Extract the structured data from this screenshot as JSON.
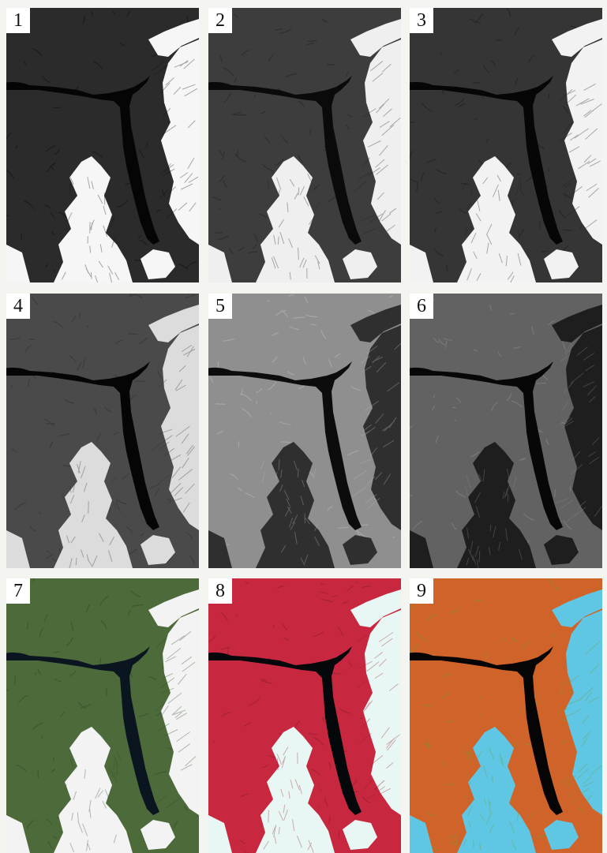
{
  "figure": {
    "panels": [
      {
        "label": "1",
        "kind": "band",
        "ground": "#2b2b2b",
        "snow": "#f6f6f6",
        "water": "#050505",
        "texture": "#111111"
      },
      {
        "label": "2",
        "kind": "band",
        "ground": "#3d3d3d",
        "snow": "#efefef",
        "water": "#0a0a0a",
        "texture": "#222222"
      },
      {
        "label": "3",
        "kind": "band",
        "ground": "#353535",
        "snow": "#f2f2f2",
        "water": "#060606",
        "texture": "#1c1c1c"
      },
      {
        "label": "4",
        "kind": "band",
        "ground": "#4a4a4a",
        "snow": "#dcdcdc",
        "water": "#050505",
        "texture": "#303030"
      },
      {
        "label": "5",
        "kind": "band",
        "ground": "#8f8f8f",
        "snow": "#2f2f2f",
        "water": "#0c0c0c",
        "texture": "#b8b8b8"
      },
      {
        "label": "6",
        "kind": "band",
        "ground": "#626262",
        "snow": "#1e1e1e",
        "water": "#070707",
        "texture": "#8a8a8a"
      },
      {
        "label": "7",
        "kind": "composite",
        "ground": "#4d6a3a",
        "snow": "#f3f3f3",
        "water": "#0b1520",
        "texture": "#2f4a2a"
      },
      {
        "label": "8",
        "kind": "composite",
        "ground": "#c8283f",
        "snow": "#e9f7f4",
        "water": "#05080a",
        "texture": "#8c1c2c"
      },
      {
        "label": "9",
        "kind": "composite",
        "ground": "#d0632a",
        "snow": "#5fc6e4",
        "water": "#050505",
        "texture": "#7b9a25"
      }
    ]
  }
}
